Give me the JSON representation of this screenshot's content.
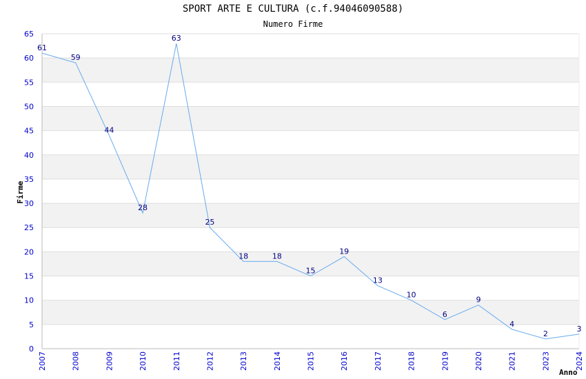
{
  "chart_data": {
    "type": "line",
    "title": "SPORT ARTE E CULTURA (c.f.94046090588)",
    "subtitle": "Numero Firme",
    "xlabel": "Anno",
    "ylabel": "Firme",
    "x": [
      "2007",
      "2008",
      "2009",
      "2010",
      "2011",
      "2012",
      "2013",
      "2014",
      "2015",
      "2016",
      "2017",
      "2018",
      "2019",
      "2020",
      "2021",
      "2023",
      "2024"
    ],
    "values": [
      61,
      59,
      44,
      28,
      63,
      25,
      18,
      18,
      15,
      19,
      13,
      10,
      6,
      9,
      4,
      2,
      3
    ],
    "ylim": [
      0,
      65
    ],
    "yticks": [
      0,
      5,
      10,
      15,
      20,
      25,
      30,
      35,
      40,
      45,
      50,
      55,
      60,
      65
    ],
    "grid": true,
    "colors": {
      "line": "#66aaee",
      "band": "#f2f2f2",
      "tick_text": "#0000cc",
      "data_label": "#000080"
    }
  }
}
